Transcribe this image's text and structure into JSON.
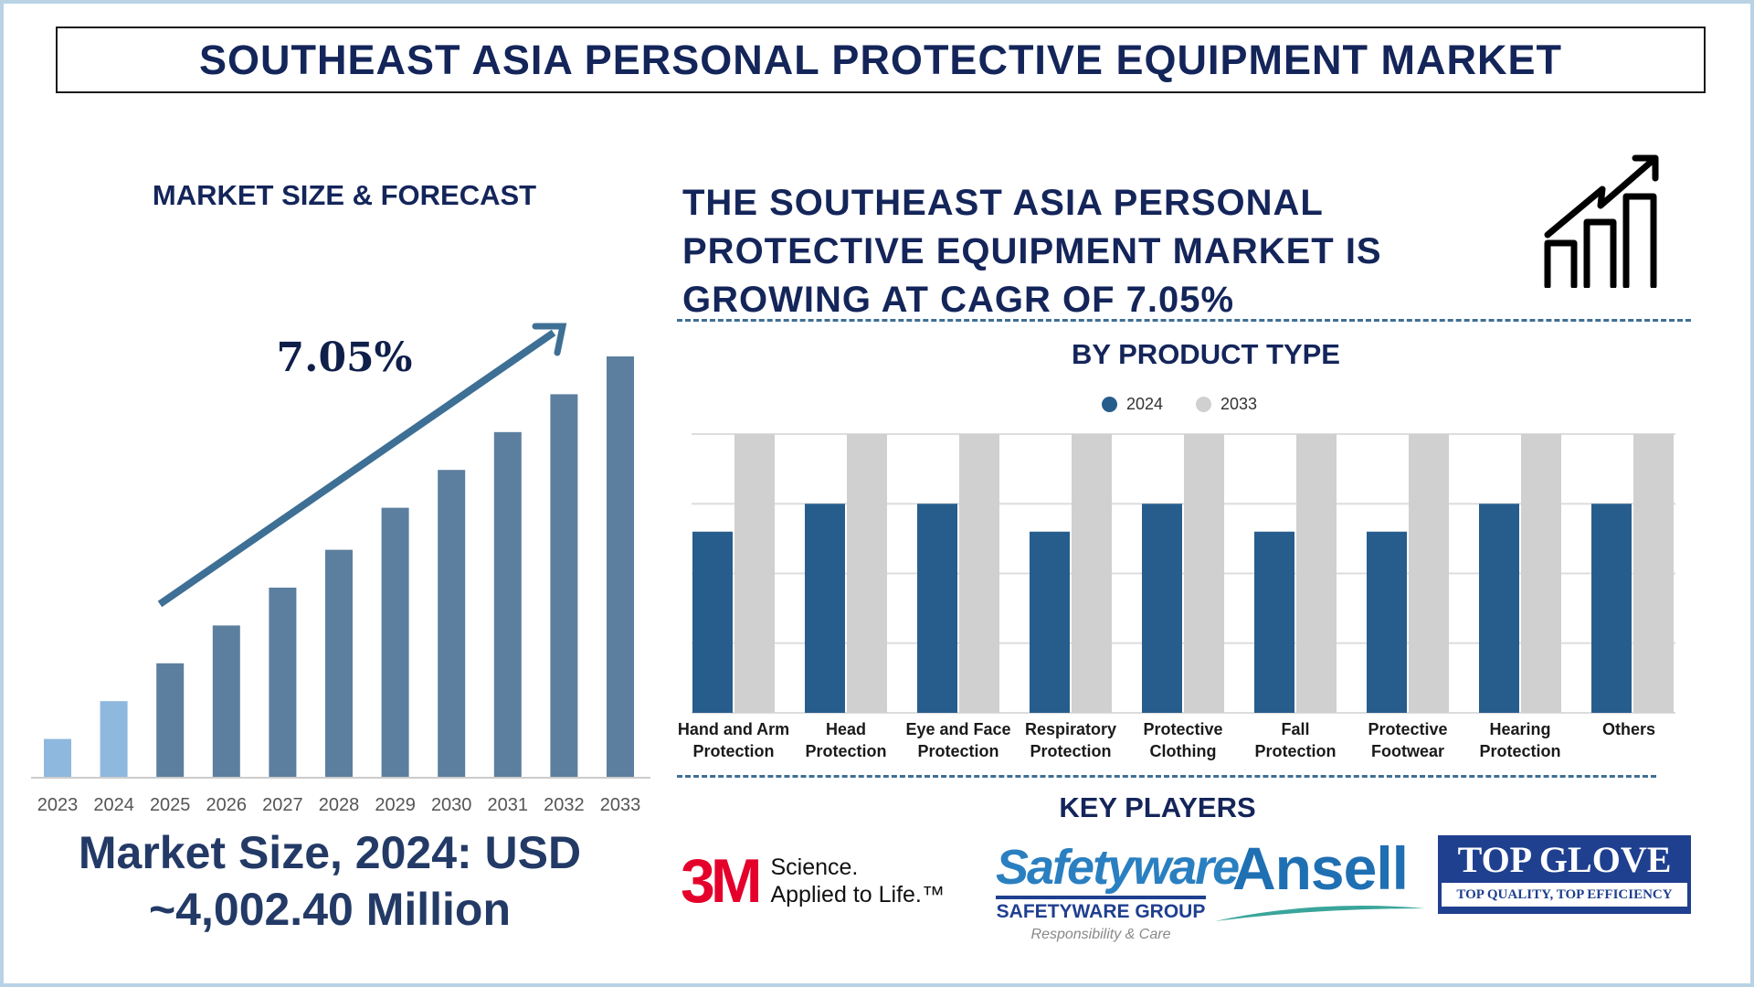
{
  "title": "SOUTHEAST ASIA PERSONAL PROTECTIVE EQUIPMENT MARKET",
  "left": {
    "heading": "MARKET SIZE & FORECAST",
    "cagr_label": "7.05%",
    "market_size_line1": "Market Size, 2024: USD",
    "market_size_line2": "~4,002.40 Million"
  },
  "headline": [
    "THE SOUTHEAST ASIA PERSONAL",
    "PROTECTIVE EQUIPMENT MARKET IS",
    "GROWING AT CAGR OF 7.05%"
  ],
  "icons": {
    "growth": "bar-chart-growth-arrow-icon"
  },
  "key_players": {
    "heading": "KEY PLAYERS",
    "logos": [
      {
        "name": "3M",
        "tagline1": "Science.",
        "tagline2": "Applied to Life.™",
        "color": "#e4002b"
      },
      {
        "name": "Safetyware",
        "sub": "SAFETYWARE GROUP",
        "tagline": "Responsibility & Care",
        "color": "#2a7fc0"
      },
      {
        "name": "Ansell",
        "color": "#1f6fb3"
      },
      {
        "name": "TOP GLOVE",
        "tagline": "TOP QUALITY, TOP EFFICIENCY",
        "color": "#1f3f8f"
      }
    ]
  },
  "chart_data": [
    {
      "type": "bar",
      "title": "",
      "categories": [
        "2023",
        "2024",
        "2025",
        "2026",
        "2027",
        "2028",
        "2029",
        "2030",
        "2031",
        "2032",
        "2033"
      ],
      "values": [
        0.09,
        0.18,
        0.27,
        0.36,
        0.45,
        0.54,
        0.64,
        0.73,
        0.82,
        0.91,
        1.0
      ],
      "value_unit": "relative to 2033 (no axis values printed)",
      "colors": [
        "#8fb8de",
        "#8fb8de",
        "#5c7f9f",
        "#5c7f9f",
        "#5c7f9f",
        "#5c7f9f",
        "#5c7f9f",
        "#5c7f9f",
        "#5c7f9f",
        "#5c7f9f",
        "#5c7f9f"
      ],
      "annotation": "7.05%",
      "grid": false
    },
    {
      "type": "bar",
      "title": "BY PRODUCT TYPE",
      "categories": [
        [
          "Hand and Arm",
          "Protection"
        ],
        [
          "Head",
          "Protection"
        ],
        [
          "Eye and Face",
          "Protection"
        ],
        [
          "Respiratory",
          "Protection"
        ],
        [
          "Protective",
          "Clothing"
        ],
        [
          "Fall",
          "Protection"
        ],
        [
          "Protective",
          "Footwear"
        ],
        [
          "Hearing",
          "Protection"
        ],
        [
          "Others"
        ]
      ],
      "series": [
        {
          "name": "2024",
          "color": "#275d8c",
          "values": [
            2.6,
            3,
            3,
            2.6,
            3,
            2.6,
            2.6,
            3,
            3
          ]
        },
        {
          "name": "2033",
          "color": "#d0d0d0",
          "values": [
            4,
            4,
            4,
            4,
            4,
            4,
            4,
            4,
            4
          ]
        }
      ],
      "ylim": [
        0,
        4
      ],
      "grid": true,
      "legend": "top-center",
      "value_unit": "gridline units (no axis values printed)"
    }
  ]
}
